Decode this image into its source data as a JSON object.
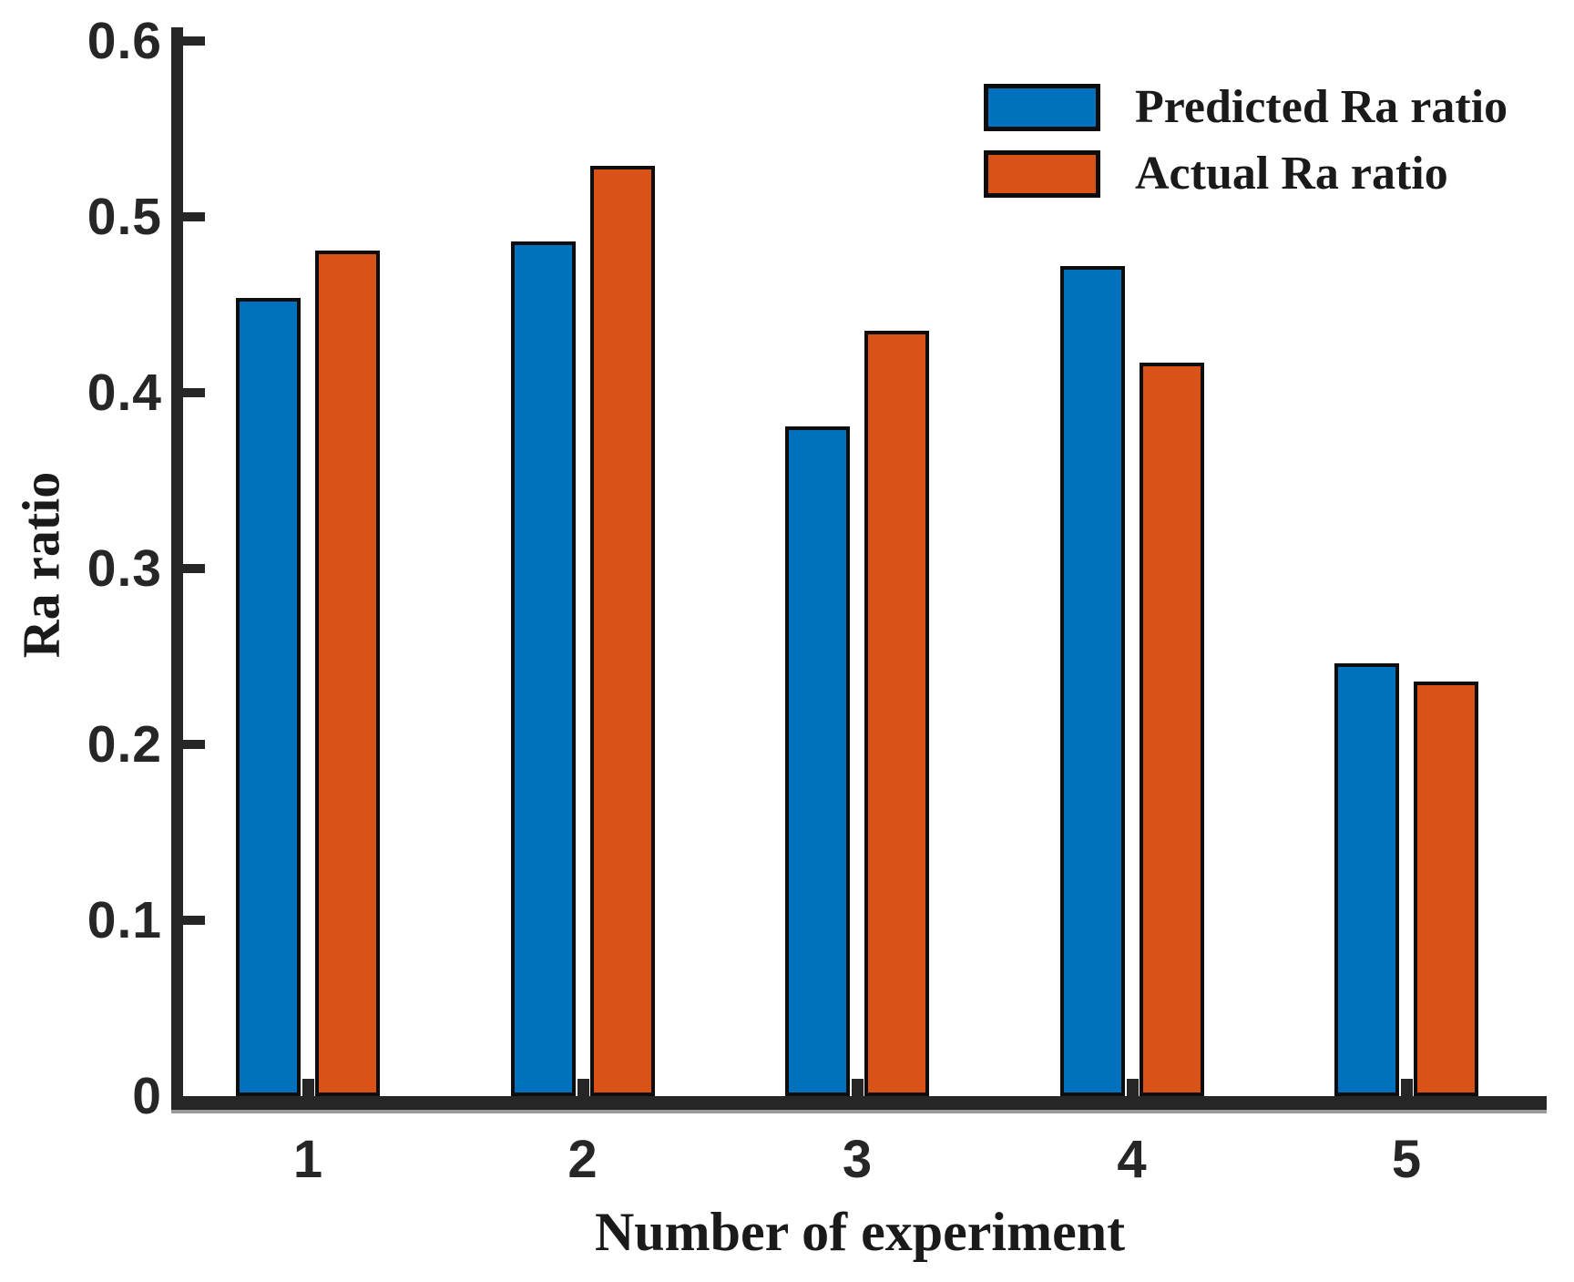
{
  "figure": {
    "background_color": "#ffffff",
    "ink_color": "#1a1a1a",
    "axis_color": "#262626"
  },
  "chart_data": {
    "type": "bar",
    "categories": [
      "1",
      "2",
      "3",
      "4",
      "5"
    ],
    "series": [
      {
        "name": "Predicted Ra ratio",
        "color": "#0072BD",
        "values": [
          0.454,
          0.486,
          0.381,
          0.472,
          0.246
        ]
      },
      {
        "name": "Actual Ra ratio",
        "color": "#D95319",
        "values": [
          0.481,
          0.529,
          0.435,
          0.417,
          0.236
        ]
      }
    ],
    "title": "",
    "xlabel": "Number of experiment",
    "ylabel": "Ra ratio",
    "ylim": [
      0,
      0.6
    ],
    "yticks": [
      0,
      0.1,
      0.2,
      0.3,
      0.4,
      0.5,
      0.6
    ],
    "ytick_labels": [
      "0",
      "0.1",
      "0.2",
      "0.3",
      "0.4",
      "0.5",
      "0.6"
    ],
    "grid": false,
    "legend_position": "top-right-inside",
    "legend_box": false,
    "bar_edge_color": "#0d0d0d"
  }
}
